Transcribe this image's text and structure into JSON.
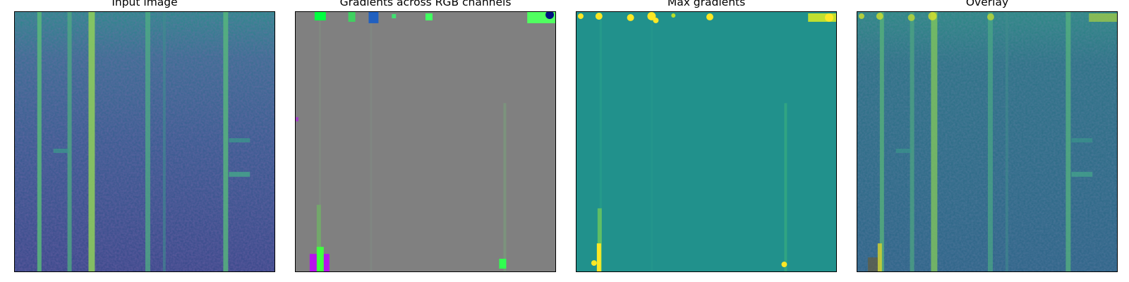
{
  "panels": [
    {
      "id": "input",
      "title": "Input image"
    },
    {
      "id": "gradients",
      "title": "Gradients across RGB channels"
    },
    {
      "id": "max",
      "title": "Max gradients"
    },
    {
      "id": "overlay",
      "title": "Overlay"
    }
  ],
  "colors": {
    "viridis_dark": "#3b528b",
    "viridis_mid": "#2a7e8e",
    "viridis_teal": "#21918c",
    "viridis_green": "#5ec962",
    "viridis_yellow": "#fde725",
    "gray": "#808080",
    "magenta": "#c000ff",
    "lime": "#00ff40"
  }
}
